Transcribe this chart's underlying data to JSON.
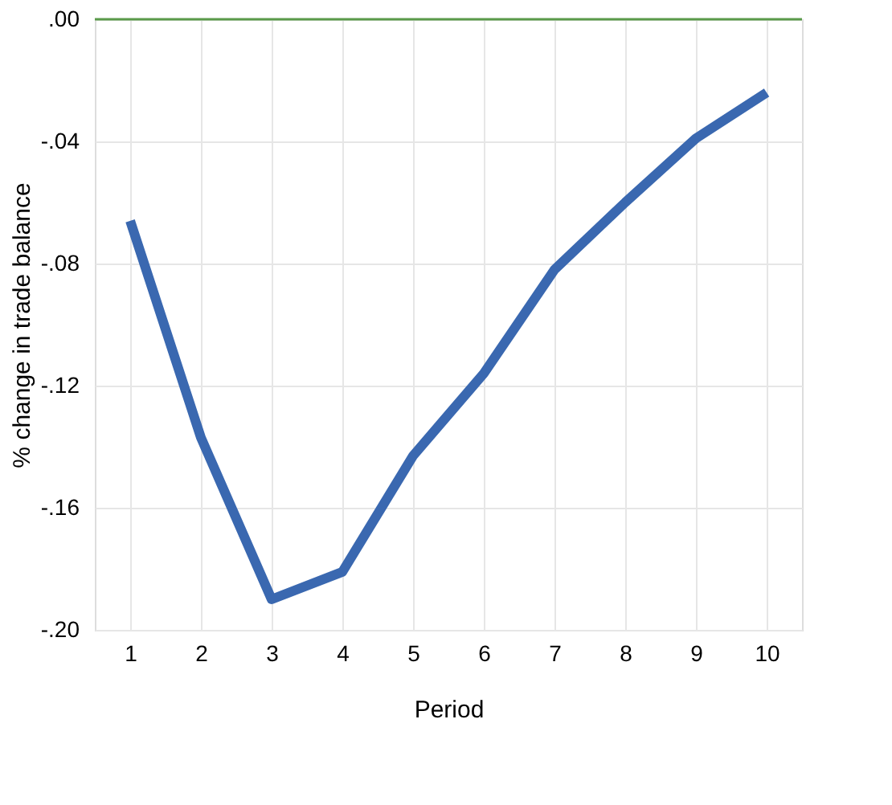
{
  "chart_data": {
    "type": "line",
    "xlabel": "Period",
    "ylabel": "% change in trade balance",
    "categories": [
      "1",
      "2",
      "3",
      "4",
      "5",
      "6",
      "7",
      "8",
      "9",
      "10"
    ],
    "series": [
      {
        "color": "#3a68b0",
        "values": [
          -0.066,
          -0.137,
          -0.19,
          -0.181,
          -0.143,
          -0.116,
          -0.082,
          -0.06,
          -0.039,
          -0.024
        ]
      }
    ],
    "ylim": [
      -0.2,
      0
    ],
    "yticks": [
      {
        "value": -0.2,
        "label": "-.20"
      },
      {
        "value": -0.16,
        "label": "-.16"
      },
      {
        "value": -0.12,
        "label": "-.12"
      },
      {
        "value": -0.08,
        "label": "-.08"
      },
      {
        "value": -0.04,
        "label": "-.04"
      },
      {
        "value": 0,
        "label": ".00"
      }
    ],
    "ref_lines": [
      {
        "axis": "y",
        "value": 0,
        "color": "#5a9a4a"
      }
    ],
    "grid": true,
    "marker": "none",
    "line_style": "solid"
  }
}
